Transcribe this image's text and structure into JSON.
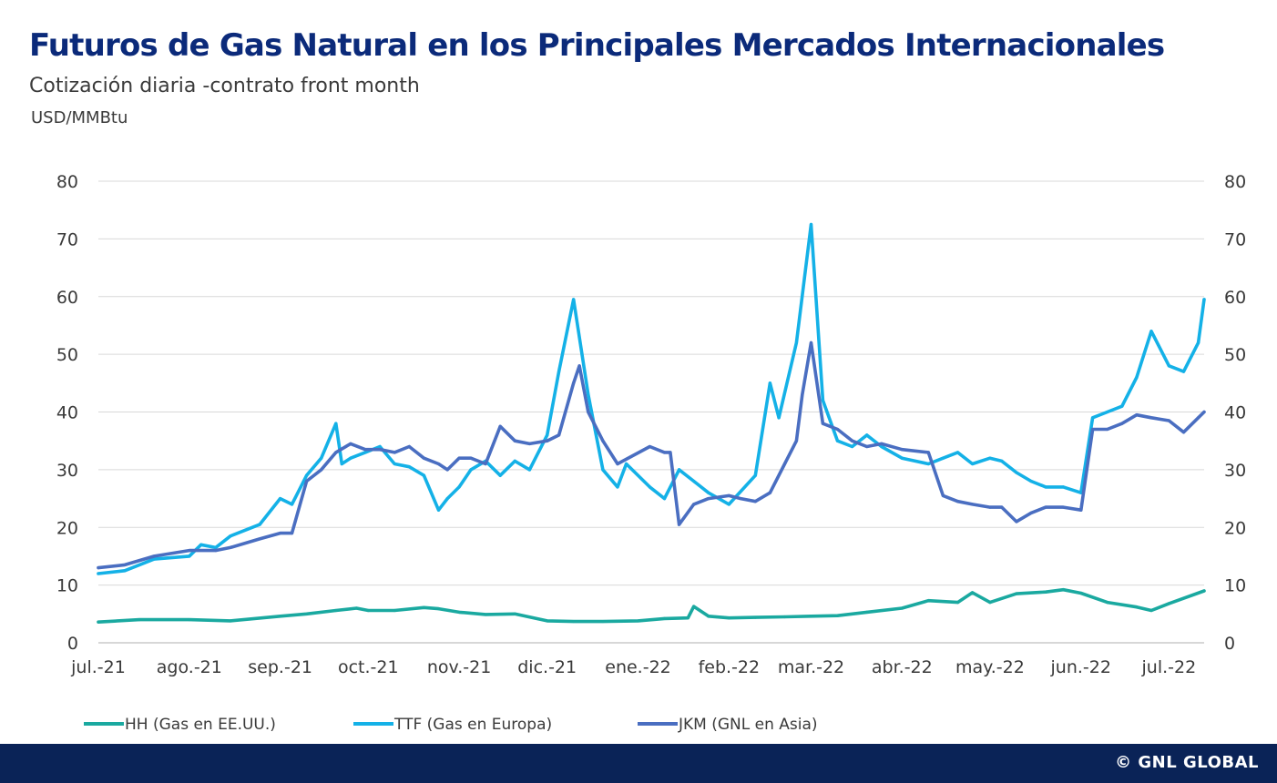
{
  "header": {
    "title": "Futuros de Gas Natural en los Principales Mercados Internacionales",
    "subtitle": "Cotización diaria -contrato front month",
    "unit": "USD/MMBtu"
  },
  "footer": {
    "brand": "© GNL GLOBAL",
    "background": "#0a2357"
  },
  "chart_data": {
    "type": "line",
    "title": "Futuros de Gas Natural en los Principales Mercados Internacionales",
    "subtitle": "Cotización diaria -contrato front month",
    "ylabel": "USD/MMBtu",
    "xlabel": "",
    "ylim": [
      0,
      80
    ],
    "y_ticks": [
      0,
      10,
      20,
      30,
      40,
      50,
      60,
      70,
      80
    ],
    "y_axis_right_mirror": true,
    "grid": "horizontal",
    "legend_position": "bottom",
    "x_tick_labels": [
      "jul.-21",
      "ago.-21",
      "sep.-21",
      "oct.-21",
      "nov.-21",
      "dic.-21",
      "ene.-22",
      "feb.-22",
      "mar.-22",
      "abr.-22",
      "may.-22",
      "jun.-22",
      "jul.-22"
    ],
    "x_ticks": [
      "2021-07-01",
      "2021-08-01",
      "2021-09-01",
      "2021-10-01",
      "2021-11-01",
      "2021-12-01",
      "2022-01-01",
      "2022-02-01",
      "2022-03-01",
      "2022-04-01",
      "2022-05-01",
      "2022-06-01",
      "2022-07-01"
    ],
    "x_range": [
      "2021-07-01",
      "2022-07-13"
    ],
    "series": [
      {
        "name": "HH (Gas en EE.UU.)",
        "color": "#1aa9a0",
        "x": [
          "2021-07-01",
          "2021-07-15",
          "2021-08-01",
          "2021-08-15",
          "2021-09-01",
          "2021-09-10",
          "2021-09-20",
          "2021-09-27",
          "2021-10-01",
          "2021-10-10",
          "2021-10-20",
          "2021-10-25",
          "2021-11-01",
          "2021-11-10",
          "2021-11-20",
          "2021-12-01",
          "2021-12-10",
          "2021-12-20",
          "2022-01-01",
          "2022-01-10",
          "2022-01-18",
          "2022-01-20",
          "2022-01-25",
          "2022-02-01",
          "2022-02-10",
          "2022-02-20",
          "2022-03-01",
          "2022-03-10",
          "2022-03-20",
          "2022-04-01",
          "2022-04-10",
          "2022-04-20",
          "2022-04-25",
          "2022-05-01",
          "2022-05-10",
          "2022-05-20",
          "2022-05-26",
          "2022-06-01",
          "2022-06-10",
          "2022-06-20",
          "2022-06-25",
          "2022-07-01",
          "2022-07-13"
        ],
        "values": [
          3.6,
          4.0,
          4.0,
          3.8,
          4.6,
          5.0,
          5.6,
          6.0,
          5.6,
          5.6,
          6.1,
          5.9,
          5.3,
          4.9,
          5.0,
          3.8,
          3.7,
          3.7,
          3.8,
          4.2,
          4.3,
          6.3,
          4.6,
          4.3,
          4.4,
          4.5,
          4.6,
          4.7,
          5.3,
          6.0,
          7.3,
          7.0,
          8.7,
          7.0,
          8.5,
          8.8,
          9.2,
          8.6,
          7.0,
          6.2,
          5.6,
          6.8,
          9.0
        ]
      },
      {
        "name": "TTF (Gas en Europa)",
        "color": "#14b1e7",
        "x": [
          "2021-07-01",
          "2021-07-10",
          "2021-07-20",
          "2021-08-01",
          "2021-08-05",
          "2021-08-10",
          "2021-08-15",
          "2021-08-25",
          "2021-09-01",
          "2021-09-05",
          "2021-09-10",
          "2021-09-15",
          "2021-09-20",
          "2021-09-22",
          "2021-09-25",
          "2021-09-30",
          "2021-10-05",
          "2021-10-10",
          "2021-10-15",
          "2021-10-20",
          "2021-10-25",
          "2021-10-28",
          "2021-11-01",
          "2021-11-05",
          "2021-11-10",
          "2021-11-15",
          "2021-11-20",
          "2021-11-25",
          "2021-12-01",
          "2021-12-05",
          "2021-12-10",
          "2021-12-15",
          "2021-12-20",
          "2021-12-25",
          "2021-12-28",
          "2022-01-05",
          "2022-01-10",
          "2022-01-15",
          "2022-01-20",
          "2022-01-25",
          "2022-02-01",
          "2022-02-10",
          "2022-02-15",
          "2022-02-18",
          "2022-02-24",
          "2022-03-01",
          "2022-03-05",
          "2022-03-10",
          "2022-03-15",
          "2022-03-20",
          "2022-03-25",
          "2022-04-01",
          "2022-04-10",
          "2022-04-15",
          "2022-04-20",
          "2022-04-25",
          "2022-05-01",
          "2022-05-05",
          "2022-05-10",
          "2022-05-15",
          "2022-05-20",
          "2022-05-26",
          "2022-06-01",
          "2022-06-05",
          "2022-06-10",
          "2022-06-15",
          "2022-06-20",
          "2022-06-25",
          "2022-07-01",
          "2022-07-06",
          "2022-07-11",
          "2022-07-13"
        ],
        "values": [
          12,
          12.5,
          14.5,
          15.0,
          17.0,
          16.5,
          18.5,
          20.5,
          25.0,
          24.0,
          29.0,
          32.0,
          38.0,
          31.0,
          32.0,
          33.0,
          34.0,
          31.0,
          30.5,
          29.0,
          23.0,
          25.0,
          27.0,
          30.0,
          31.5,
          29.0,
          31.5,
          30.0,
          36.0,
          47.0,
          59.5,
          43.0,
          30.0,
          27.0,
          31.0,
          27.0,
          25.0,
          30.0,
          28.0,
          26.0,
          24.0,
          29.0,
          45.0,
          39.0,
          52.0,
          72.5,
          42.0,
          35.0,
          34.0,
          36.0,
          34.0,
          32.0,
          31.0,
          32.0,
          33.0,
          31.0,
          32.0,
          31.5,
          29.5,
          28.0,
          27.0,
          27.0,
          26.0,
          39.0,
          40.0,
          41.0,
          46.0,
          54.0,
          48.0,
          47.0,
          52.0,
          59.5
        ]
      },
      {
        "name": "JKM (GNL en Asia)",
        "color": "#4a6ec1",
        "x": [
          "2021-07-01",
          "2021-07-10",
          "2021-07-20",
          "2021-08-01",
          "2021-08-10",
          "2021-08-15",
          "2021-08-25",
          "2021-09-01",
          "2021-09-05",
          "2021-09-10",
          "2021-09-15",
          "2021-09-20",
          "2021-09-25",
          "2021-09-30",
          "2021-10-05",
          "2021-10-10",
          "2021-10-15",
          "2021-10-20",
          "2021-10-25",
          "2021-10-28",
          "2021-11-01",
          "2021-11-05",
          "2021-11-10",
          "2021-11-15",
          "2021-11-20",
          "2021-11-25",
          "2021-12-01",
          "2021-12-05",
          "2021-12-10",
          "2021-12-12",
          "2021-12-15",
          "2021-12-20",
          "2021-12-25",
          "2022-01-05",
          "2022-01-10",
          "2022-01-12",
          "2022-01-15",
          "2022-01-20",
          "2022-01-25",
          "2022-02-01",
          "2022-02-05",
          "2022-02-10",
          "2022-02-15",
          "2022-02-20",
          "2022-02-24",
          "2022-02-26",
          "2022-03-01",
          "2022-03-05",
          "2022-03-10",
          "2022-03-15",
          "2022-03-20",
          "2022-03-25",
          "2022-04-01",
          "2022-04-10",
          "2022-04-15",
          "2022-04-20",
          "2022-04-25",
          "2022-05-01",
          "2022-05-05",
          "2022-05-10",
          "2022-05-15",
          "2022-05-20",
          "2022-05-26",
          "2022-06-01",
          "2022-06-05",
          "2022-06-10",
          "2022-06-15",
          "2022-06-20",
          "2022-06-25",
          "2022-07-01",
          "2022-07-06",
          "2022-07-11",
          "2022-07-13"
        ],
        "values": [
          13,
          13.5,
          15.0,
          16.0,
          16.0,
          16.5,
          18.0,
          19.0,
          19.0,
          28.0,
          30.0,
          33.0,
          34.5,
          33.5,
          33.5,
          33.0,
          34.0,
          32.0,
          31.0,
          30.0,
          32.0,
          32.0,
          31.0,
          37.5,
          35.0,
          34.5,
          35.0,
          36.0,
          45.0,
          48.0,
          40.0,
          35.0,
          31.0,
          34.0,
          33.0,
          33.0,
          20.5,
          24.0,
          25.0,
          25.5,
          25.0,
          24.5,
          26.0,
          31.0,
          35.0,
          43.0,
          52.0,
          38.0,
          37.0,
          35.0,
          34.0,
          34.5,
          33.5,
          33.0,
          25.5,
          24.5,
          24.0,
          23.5,
          23.5,
          21.0,
          22.5,
          23.5,
          23.5,
          23.0,
          37.0,
          37.0,
          38.0,
          39.5,
          39.0,
          38.5,
          36.5,
          39.0,
          40.0
        ]
      }
    ]
  }
}
